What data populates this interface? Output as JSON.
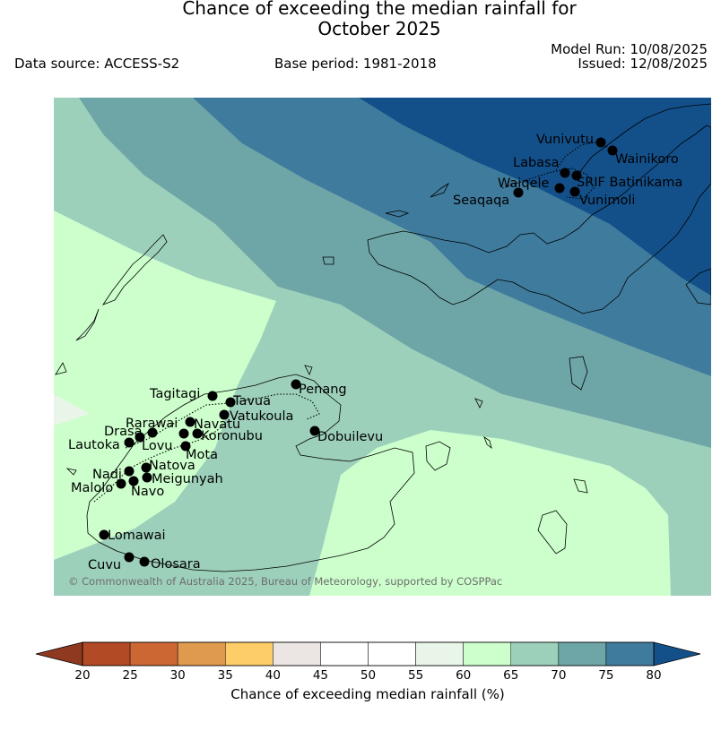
{
  "header": {
    "title": "Chance of exceeding the median rainfall for\nOctober 2025",
    "data_source": "Data source: ACCESS-S2",
    "base_period": "Base period: 1981-2018",
    "model_run": "Model Run: 10/08/2025",
    "issued": "Issued: 12/08/2025"
  },
  "map": {
    "copyright": "© Commonwealth of Australia 2025, Bureau of Meteorology, supported by COSPPac",
    "stations": [
      {
        "name": "Vunivutu"
      },
      {
        "name": "Wainikoro"
      },
      {
        "name": "Labasa"
      },
      {
        "name": "Waiqele"
      },
      {
        "name": "SRIF Batinikama"
      },
      {
        "name": "Seaqaqa"
      },
      {
        "name": "Vunimoli"
      },
      {
        "name": "Tagitagi"
      },
      {
        "name": "Tavua"
      },
      {
        "name": "Penang"
      },
      {
        "name": "Vatukoula"
      },
      {
        "name": "Rarawai"
      },
      {
        "name": "Navatu"
      },
      {
        "name": "Drasa"
      },
      {
        "name": "Koronubu"
      },
      {
        "name": "Lautoka"
      },
      {
        "name": "Lovu"
      },
      {
        "name": "Dobuilevu"
      },
      {
        "name": "Mota"
      },
      {
        "name": "Natova"
      },
      {
        "name": "Nadi"
      },
      {
        "name": "Meigunyah"
      },
      {
        "name": "Malolo"
      },
      {
        "name": "Navo"
      },
      {
        "name": "Lomawai"
      },
      {
        "name": "Cuvu"
      },
      {
        "name": "Olosara"
      }
    ]
  },
  "colorbar": {
    "title": "Chance of exceeding median rainfall (%)",
    "ticks": [
      "20",
      "25",
      "30",
      "35",
      "40",
      "45",
      "50",
      "55",
      "60",
      "65",
      "70",
      "75",
      "80"
    ],
    "colors": [
      "#b34a26",
      "#cc6633",
      "#e09a4d",
      "#fdcd67",
      "#ebe6e3",
      "#ffffff",
      "#ffffff",
      "#e9f5e9",
      "#ccffcc",
      "#9dd0bb",
      "#6ea6a8",
      "#3f7b9d"
    ],
    "under_color": "#8f3a20",
    "over_color": "#13508a"
  }
}
